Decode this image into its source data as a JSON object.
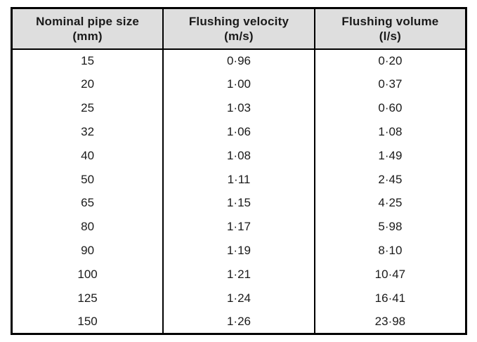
{
  "page": {
    "background": "#ffffff"
  },
  "table": {
    "description": "Flushing velocities and volumes by nominal pipe size",
    "colors": {
      "header_bg": "#dedede",
      "border": "#000000",
      "text": "#1a1a1a"
    },
    "columns": [
      {
        "label": "Nominal pipe size",
        "unit": "(mm)"
      },
      {
        "label": "Flushing velocity",
        "unit": "(m/s)"
      },
      {
        "label": "Flushing volume",
        "unit": "(l/s)"
      }
    ],
    "rows": [
      [
        "15",
        "0·96",
        "0·20"
      ],
      [
        "20",
        "1·00",
        "0·37"
      ],
      [
        "25",
        "1·03",
        "0·60"
      ],
      [
        "32",
        "1·06",
        "1·08"
      ],
      [
        "40",
        "1·08",
        "1·49"
      ],
      [
        "50",
        "1·11",
        "2·45"
      ],
      [
        "65",
        "1·15",
        "4·25"
      ],
      [
        "80",
        "1·17",
        "5·98"
      ],
      [
        "90",
        "1·19",
        "8·10"
      ],
      [
        "100",
        "1·21",
        "10·47"
      ],
      [
        "125",
        "1·24",
        "16·41"
      ],
      [
        "150",
        "1·26",
        "23·98"
      ]
    ]
  },
  "chart_data": {
    "type": "table",
    "title": "",
    "columns": [
      "Nominal pipe size (mm)",
      "Flushing velocity (m/s)",
      "Flushing volume (l/s)"
    ],
    "pipe_size_mm": [
      15,
      20,
      25,
      32,
      40,
      50,
      65,
      80,
      90,
      100,
      125,
      150
    ],
    "flushing_velocity_m_s": [
      0.96,
      1.0,
      1.03,
      1.06,
      1.08,
      1.11,
      1.15,
      1.17,
      1.19,
      1.21,
      1.24,
      1.26
    ],
    "flushing_volume_l_s": [
      0.2,
      0.37,
      0.6,
      1.08,
      1.49,
      2.45,
      4.25,
      5.98,
      8.1,
      10.47,
      16.41,
      23.98
    ]
  }
}
